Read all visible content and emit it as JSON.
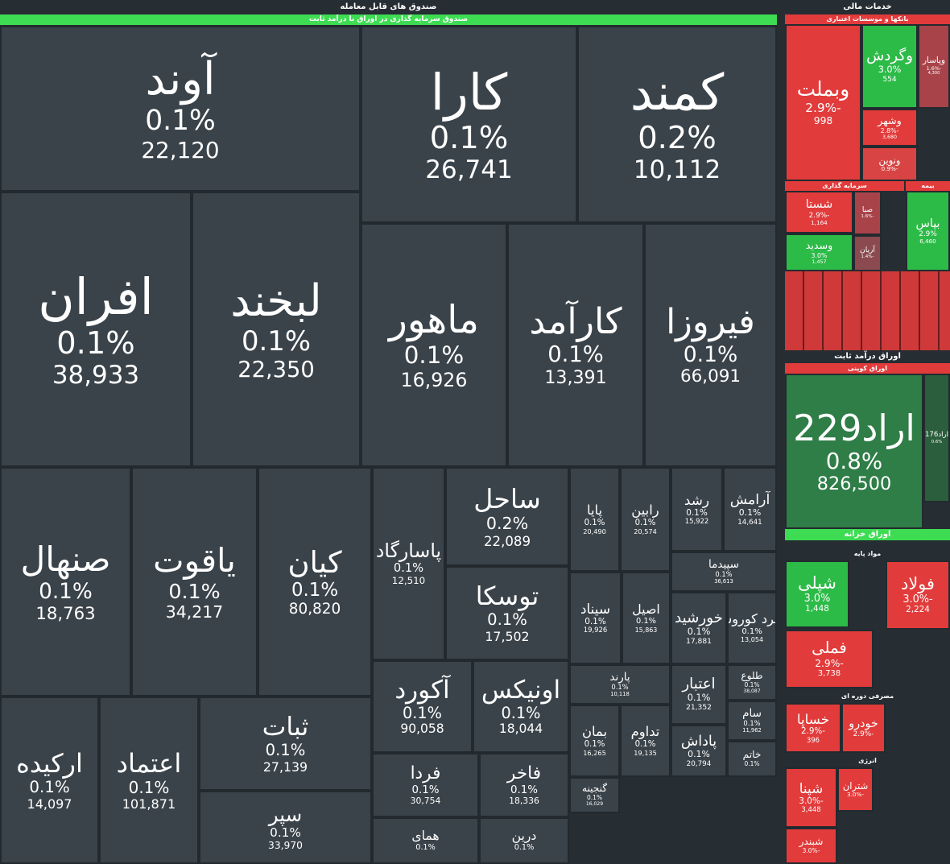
{
  "header": {
    "title": "صندوق های قابل معامله",
    "subtitle": "صندوق سرمایه گذاری در اوراق با درآمد ثابت"
  },
  "tiles": [
    {
      "name": "آوند",
      "change": "0.1%",
      "volume": "22,120"
    },
    {
      "name": "کارا",
      "change": "0.1%",
      "volume": "26,741"
    },
    {
      "name": "کمند",
      "change": "0.2%",
      "volume": "10,112"
    },
    {
      "name": "افران",
      "change": "0.1%",
      "volume": "38,933"
    },
    {
      "name": "لبخند",
      "change": "0.1%",
      "volume": "22,350"
    },
    {
      "name": "ماهور",
      "change": "0.1%",
      "volume": "16,926"
    },
    {
      "name": "کارآمد",
      "change": "0.1%",
      "volume": "13,391"
    },
    {
      "name": "فیروزا",
      "change": "0.1%",
      "volume": "66,091"
    },
    {
      "name": "صنهال",
      "change": "0.1%",
      "volume": "18,763"
    },
    {
      "name": "یاقوت",
      "change": "0.1%",
      "volume": "34,217"
    },
    {
      "name": "کیان",
      "change": "0.1%",
      "volume": "80,820"
    },
    {
      "name": "پاسارگاد",
      "change": "0.1%",
      "volume": "12,510"
    },
    {
      "name": "ساحل",
      "change": "0.2%",
      "volume": "22,089"
    },
    {
      "name": "توسکا",
      "change": "0.1%",
      "volume": "17,502"
    },
    {
      "name": "پایا",
      "change": "0.1%",
      "volume": "20,490"
    },
    {
      "name": "رابین",
      "change": "0.1%",
      "volume": "20,574"
    },
    {
      "name": "رشد",
      "change": "0.1%",
      "volume": "15,922"
    },
    {
      "name": "آرامش",
      "change": "0.1%",
      "volume": "14,641"
    },
    {
      "name": "سپیدما",
      "change": "0.1%",
      "volume": "36,613"
    },
    {
      "name": "سیناد",
      "change": "0.1%",
      "volume": "19,926"
    },
    {
      "name": "اصیل",
      "change": "0.1%",
      "volume": "15,863"
    },
    {
      "name": "خورشید",
      "change": "0.1%",
      "volume": "17,881"
    },
    {
      "name": "زمرد کوروش",
      "change": "0.1%",
      "volume": "13,054"
    },
    {
      "name": "ارکیده",
      "change": "0.1%",
      "volume": "14,097"
    },
    {
      "name": "اعتماد",
      "change": "0.1%",
      "volume": "101,871"
    },
    {
      "name": "ثبات",
      "change": "0.1%",
      "volume": "27,139"
    },
    {
      "name": "سپر",
      "change": "0.1%",
      "volume": "33,970"
    },
    {
      "name": "آکورد",
      "change": "0.1%",
      "volume": "90,058"
    },
    {
      "name": "اونیکس",
      "change": "0.1%",
      "volume": "18,044"
    },
    {
      "name": "فردا",
      "change": "0.1%",
      "volume": "30,754"
    },
    {
      "name": "فاخر",
      "change": "0.1%",
      "volume": "18,336"
    },
    {
      "name": "همای",
      "change": "0.1%"
    },
    {
      "name": "درین",
      "change": "0.1%"
    },
    {
      "name": "پارند",
      "change": "0.1%",
      "volume": "10,118"
    },
    {
      "name": "اعتبار",
      "change": "0.1%",
      "volume": "21,352"
    },
    {
      "name": "طلوع",
      "change": "0.1%",
      "volume": "38,087"
    },
    {
      "name": "سام",
      "change": "0.1%",
      "volume": "11,962"
    },
    {
      "name": "بمان",
      "change": "0.1%",
      "volume": "16,265"
    },
    {
      "name": "تداوم",
      "change": "0.1%",
      "volume": "19,135"
    },
    {
      "name": "پاداش",
      "change": "0.1%",
      "volume": "20,794"
    },
    {
      "name": "خاتم",
      "change": "0.1%"
    },
    {
      "name": "گنجینه",
      "change": "0.1%",
      "volume": "16,029"
    }
  ],
  "sidebar": {
    "title": "خدمات مالی",
    "sections": [
      {
        "title": "بانکها و موسسات اعتباری",
        "tiles": [
          {
            "name": "وبملت",
            "change": "-2.9%",
            "volume": "998",
            "color": "#e23b3b"
          },
          {
            "name": "وگردش",
            "change": "3.0%",
            "volume": "554",
            "color": "#2dbb48"
          },
          {
            "name": "وپاسار",
            "change": "-1.6%",
            "volume": "4,300",
            "color": "#a8434a"
          },
          {
            "name": "وشهر",
            "change": "-2.8%",
            "volume": "3,680",
            "color": "#e23b3b"
          },
          {
            "name": "ونوین",
            "change": "-0.9%",
            "color": "#d84444"
          }
        ]
      },
      {
        "title": "سرمایه گذاری",
        "tiles": [
          {
            "name": "شستا",
            "change": "-2.9%",
            "volume": "1,164",
            "color": "#e23b3b"
          },
          {
            "name": "وسدید",
            "change": "3.0%",
            "volume": "1,457",
            "color": "#2dbb48"
          },
          {
            "name": "صبا",
            "change": "-1.6%",
            "color": "#a8434a"
          },
          {
            "name": "آریان",
            "change": "-1.4%",
            "color": "#8a4a50"
          }
        ]
      },
      {
        "title": "بیمه",
        "tiles": [
          {
            "name": "بپاس",
            "change": "2.9%",
            "volume": "6,460",
            "color": "#2dbb48"
          }
        ]
      },
      {
        "title": "اوراق کوپنی",
        "tiles": [
          {
            "name": "اراد229",
            "change": "0.8%",
            "volume": "826,500",
            "color": "#2f7d47"
          },
          {
            "name": "اراد176",
            "change": "0.6%",
            "color": "#2a5e3c"
          }
        ]
      },
      {
        "title": "مواد پایه",
        "tiles": [
          {
            "name": "شپلی",
            "change": "3.0%",
            "volume": "1,448",
            "color": "#2dbb48"
          },
          {
            "name": "فولاد",
            "change": "-3.0%",
            "volume": "2,224",
            "color": "#e23b3b"
          },
          {
            "name": "فملی",
            "change": "-2.9%",
            "volume": "3,738",
            "color": "#e23b3b"
          }
        ]
      },
      {
        "title": "مصرفی دوره ای",
        "tiles": [
          {
            "name": "خساپا",
            "change": "-2.9%",
            "volume": "396",
            "color": "#e23b3b"
          },
          {
            "name": "خودرو",
            "change": "-2.9%",
            "color": "#e23b3b"
          }
        ]
      },
      {
        "title": "انرژی",
        "tiles": [
          {
            "name": "شپنا",
            "change": "-3.0%",
            "volume": "3,448",
            "color": "#e23b3b"
          },
          {
            "name": "شتران",
            "change": "-3.0%",
            "color": "#e23b3b"
          },
          {
            "name": "شبندر",
            "change": "-3.0%",
            "color": "#e23b3b"
          }
        ]
      }
    ]
  },
  "fixed_income_title": "اوراق درآمد ثابت",
  "treasury_title": "اوراق خزانه"
}
